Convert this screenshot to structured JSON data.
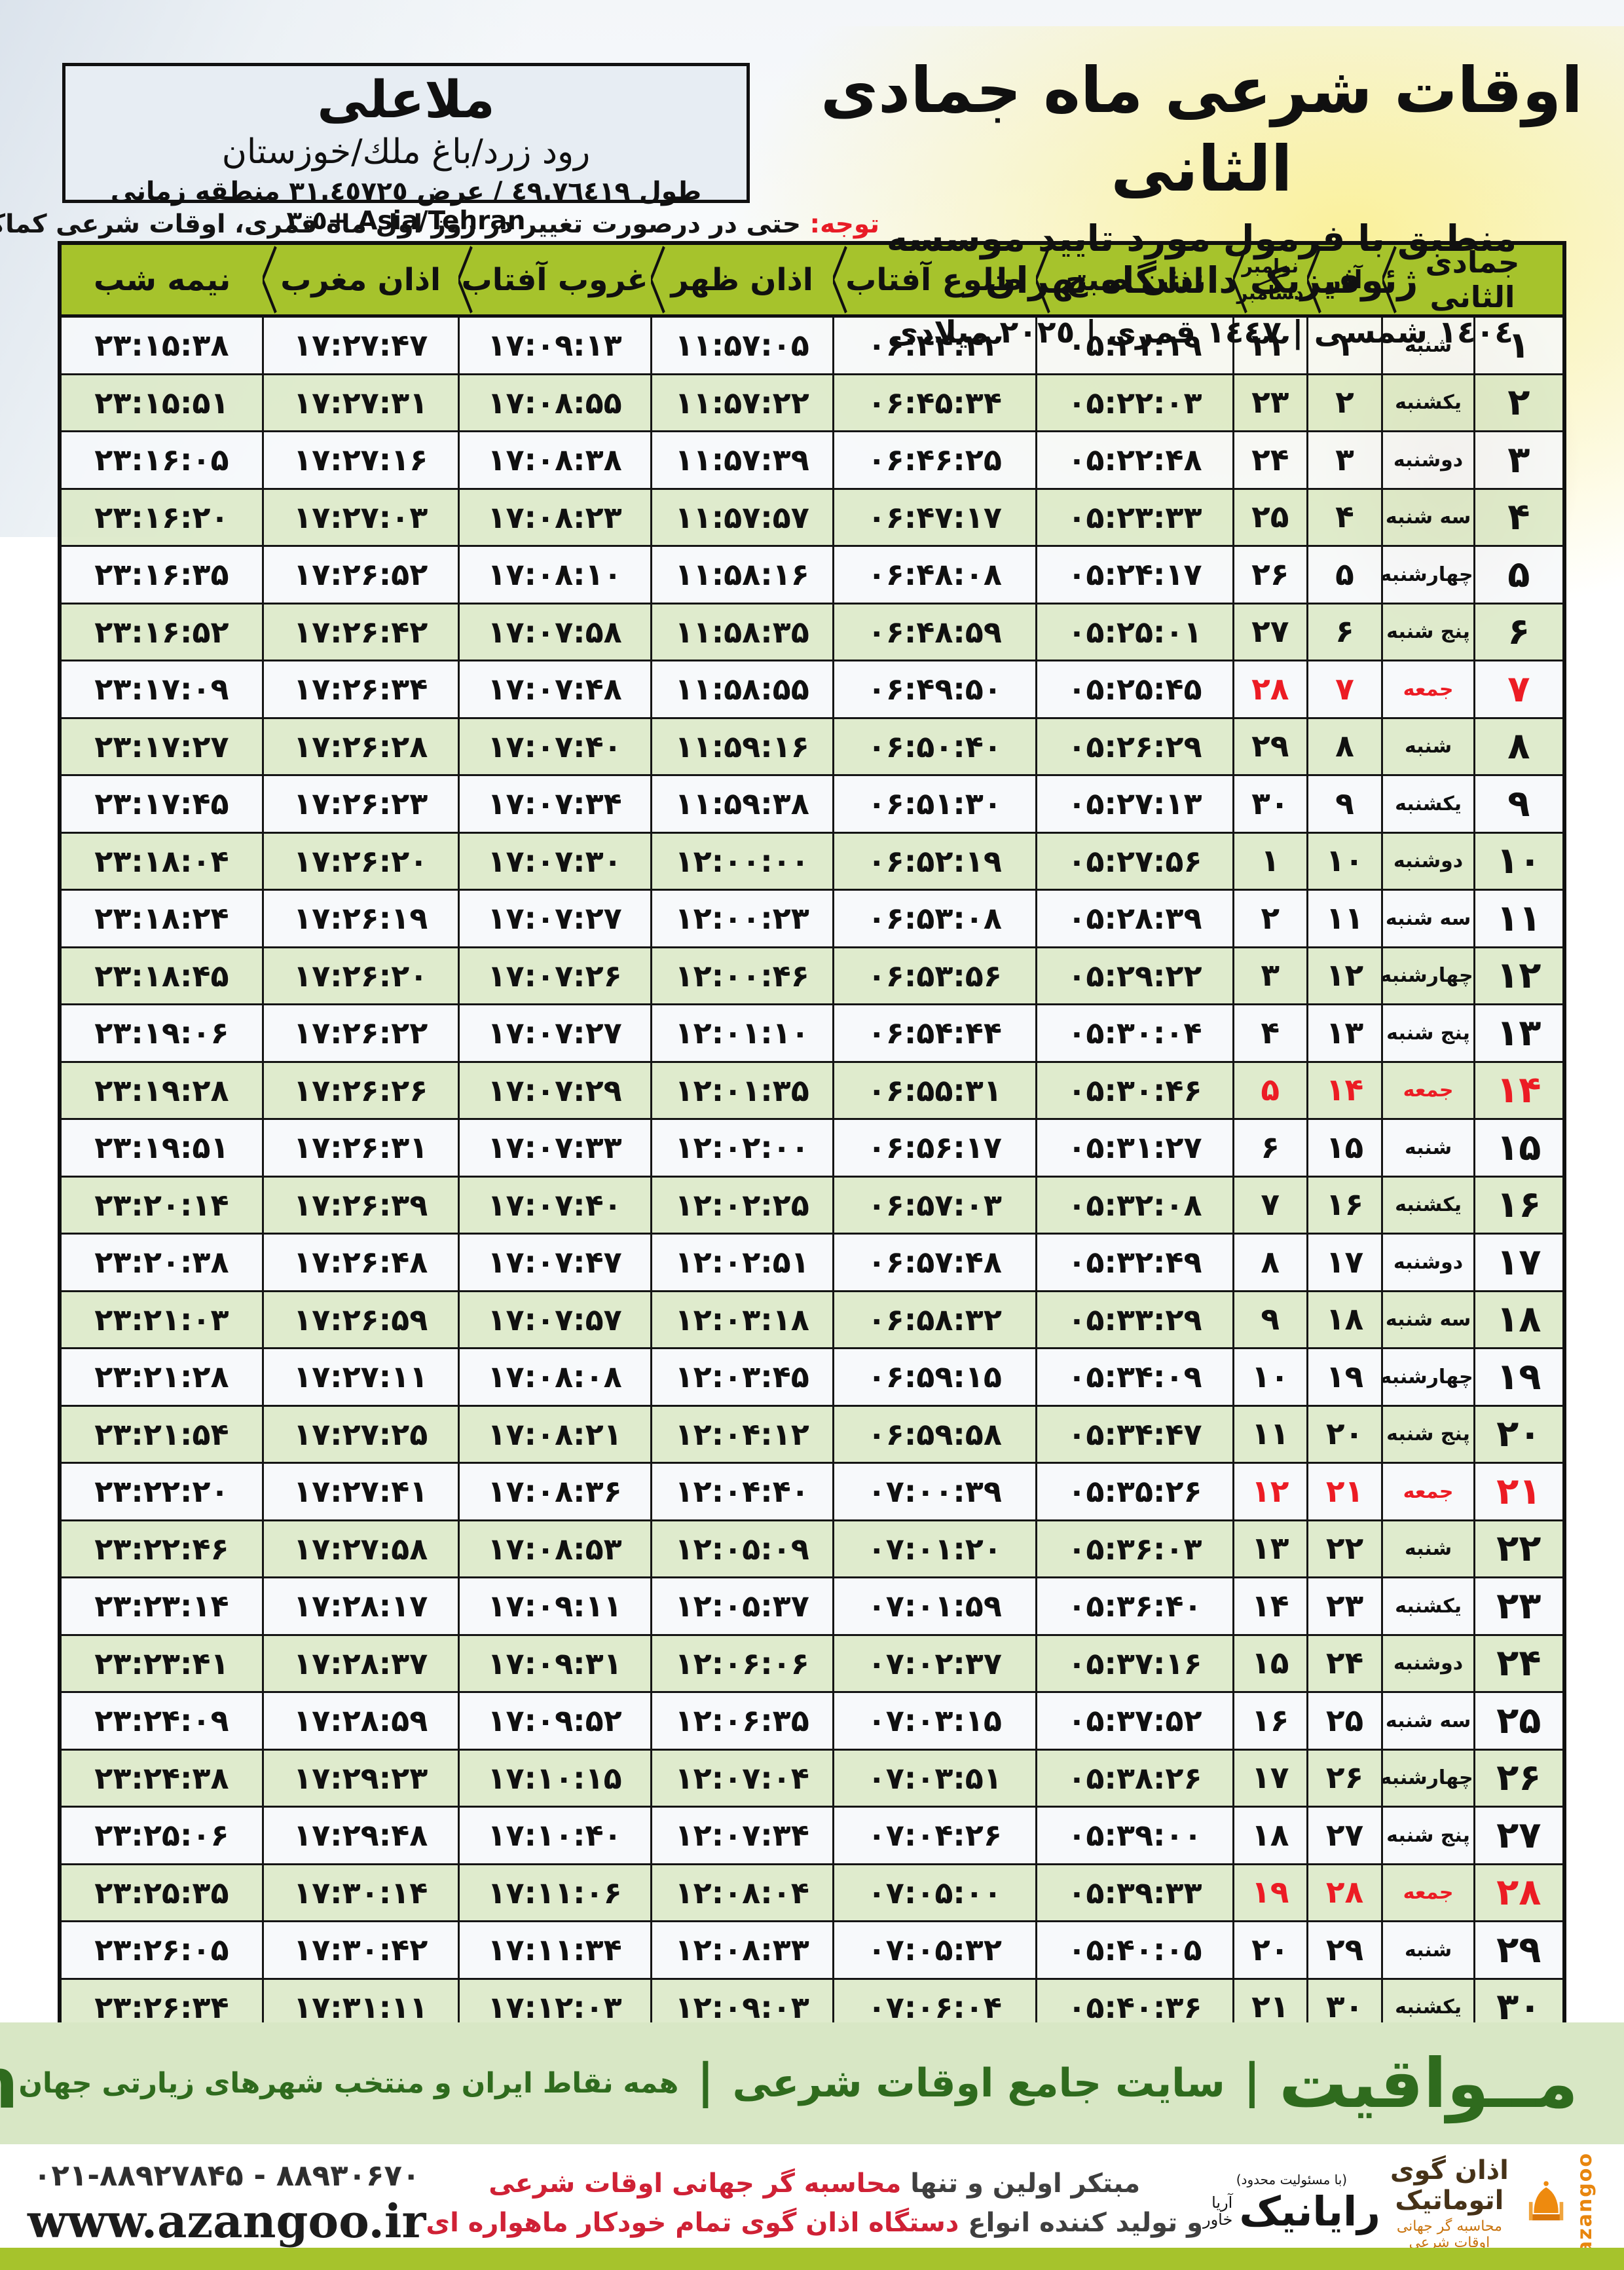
{
  "colors": {
    "header_green": "#a6c32c",
    "row_green": "#dbe8c6",
    "row_white": "#f5f8fa",
    "friday_red": "#ec1c24",
    "note_red": "#e81c26",
    "brand_green": "#2f6b1e",
    "band_green": "#d8e7c5",
    "tagline_red": "#cf2135",
    "azangoo_orange": "#e8860e"
  },
  "header": {
    "title": "اوقات شرعی ماه جمادی الثانی",
    "subtitle": "منطبق با فرمول مورد تایید موسسه ژئوفیزیک دانشگاه تهران",
    "year_line": "١٤٠٤ شمسی | ١٤٤٧ قمری | ٢٠٢٥ میلادی"
  },
  "location": {
    "name": "ملاعلی",
    "region": "رود زرد/باغ ملك/خوزستان",
    "coordinates": "طول ٤٩.٧٦٤١٩ / عرض ٣١.٤٥٧٢٥ منطقه زمانی Asia/Tehran +٣.٥"
  },
  "note": {
    "label": "توجه:",
    "text": " حتی در درصورت تغییر در روز اول ماه قمری، اوقات شرعی کماکان برای روزهای شمسی و میلادی معتبر است."
  },
  "table": {
    "headers": {
      "month": "جمادی الثانی",
      "azar": "آذر",
      "greg_top": "نوامبر",
      "greg_bottom": "دسامبر",
      "sobh": "اذان صبح",
      "tolu": "طلوع آفتاب",
      "zohr": "اذان ظهر",
      "ghorub": "غروب آفتاب",
      "maghreb": "اذان مغرب",
      "nimeshab": "نیمه شب"
    },
    "rows": [
      {
        "day": "۱",
        "weekday": "شنبه",
        "azar": "۱",
        "greg": "۲۲",
        "sobh": "۰۵:۲۱:۱۹",
        "tolu": "۰۶:۴۴:۴۲",
        "zohr": "۱۱:۵۷:۰۵",
        "ghorub": "۱۷:۰۹:۱۳",
        "maghreb": "۱۷:۲۷:۴۷",
        "nimeshab": "۲۳:۱۵:۳۸"
      },
      {
        "day": "۲",
        "weekday": "یکشنبه",
        "azar": "۲",
        "greg": "۲۳",
        "sobh": "۰۵:۲۲:۰۳",
        "tolu": "۰۶:۴۵:۳۴",
        "zohr": "۱۱:۵۷:۲۲",
        "ghorub": "۱۷:۰۸:۵۵",
        "maghreb": "۱۷:۲۷:۳۱",
        "nimeshab": "۲۳:۱۵:۵۱"
      },
      {
        "day": "۳",
        "weekday": "دوشنبه",
        "azar": "۳",
        "greg": "۲۴",
        "sobh": "۰۵:۲۲:۴۸",
        "tolu": "۰۶:۴۶:۲۵",
        "zohr": "۱۱:۵۷:۳۹",
        "ghorub": "۱۷:۰۸:۳۸",
        "maghreb": "۱۷:۲۷:۱۶",
        "nimeshab": "۲۳:۱۶:۰۵"
      },
      {
        "day": "۴",
        "weekday": "سه شنبه",
        "azar": "۴",
        "greg": "۲۵",
        "sobh": "۰۵:۲۳:۳۳",
        "tolu": "۰۶:۴۷:۱۷",
        "zohr": "۱۱:۵۷:۵۷",
        "ghorub": "۱۷:۰۸:۲۳",
        "maghreb": "۱۷:۲۷:۰۳",
        "nimeshab": "۲۳:۱۶:۲۰"
      },
      {
        "day": "۵",
        "weekday": "چهارشنبه",
        "azar": "۵",
        "greg": "۲۶",
        "sobh": "۰۵:۲۴:۱۷",
        "tolu": "۰۶:۴۸:۰۸",
        "zohr": "۱۱:۵۸:۱۶",
        "ghorub": "۱۷:۰۸:۱۰",
        "maghreb": "۱۷:۲۶:۵۲",
        "nimeshab": "۲۳:۱۶:۳۵"
      },
      {
        "day": "۶",
        "weekday": "پنج شنبه",
        "azar": "۶",
        "greg": "۲۷",
        "sobh": "۰۵:۲۵:۰۱",
        "tolu": "۰۶:۴۸:۵۹",
        "zohr": "۱۱:۵۸:۳۵",
        "ghorub": "۱۷:۰۷:۵۸",
        "maghreb": "۱۷:۲۶:۴۲",
        "nimeshab": "۲۳:۱۶:۵۲"
      },
      {
        "day": "۷",
        "weekday": "جمعه",
        "azar": "۷",
        "greg": "۲۸",
        "sobh": "۰۵:۲۵:۴۵",
        "tolu": "۰۶:۴۹:۵۰",
        "zohr": "۱۱:۵۸:۵۵",
        "ghorub": "۱۷:۰۷:۴۸",
        "maghreb": "۱۷:۲۶:۳۴",
        "nimeshab": "۲۳:۱۷:۰۹"
      },
      {
        "day": "۸",
        "weekday": "شنبه",
        "azar": "۸",
        "greg": "۲۹",
        "sobh": "۰۵:۲۶:۲۹",
        "tolu": "۰۶:۵۰:۴۰",
        "zohr": "۱۱:۵۹:۱۶",
        "ghorub": "۱۷:۰۷:۴۰",
        "maghreb": "۱۷:۲۶:۲۸",
        "nimeshab": "۲۳:۱۷:۲۷"
      },
      {
        "day": "۹",
        "weekday": "یکشنبه",
        "azar": "۹",
        "greg": "۳۰",
        "sobh": "۰۵:۲۷:۱۳",
        "tolu": "۰۶:۵۱:۳۰",
        "zohr": "۱۱:۵۹:۳۸",
        "ghorub": "۱۷:۰۷:۳۴",
        "maghreb": "۱۷:۲۶:۲۳",
        "nimeshab": "۲۳:۱۷:۴۵"
      },
      {
        "day": "۱۰",
        "weekday": "دوشنبه",
        "azar": "۱۰",
        "greg": "۱",
        "sobh": "۰۵:۲۷:۵۶",
        "tolu": "۰۶:۵۲:۱۹",
        "zohr": "۱۲:۰۰:۰۰",
        "ghorub": "۱۷:۰۷:۳۰",
        "maghreb": "۱۷:۲۶:۲۰",
        "nimeshab": "۲۳:۱۸:۰۴"
      },
      {
        "day": "۱۱",
        "weekday": "سه شنبه",
        "azar": "۱۱",
        "greg": "۲",
        "sobh": "۰۵:۲۸:۳۹",
        "tolu": "۰۶:۵۳:۰۸",
        "zohr": "۱۲:۰۰:۲۳",
        "ghorub": "۱۷:۰۷:۲۷",
        "maghreb": "۱۷:۲۶:۱۹",
        "nimeshab": "۲۳:۱۸:۲۴"
      },
      {
        "day": "۱۲",
        "weekday": "چهارشنبه",
        "azar": "۱۲",
        "greg": "۳",
        "sobh": "۰۵:۲۹:۲۲",
        "tolu": "۰۶:۵۳:۵۶",
        "zohr": "۱۲:۰۰:۴۶",
        "ghorub": "۱۷:۰۷:۲۶",
        "maghreb": "۱۷:۲۶:۲۰",
        "nimeshab": "۲۳:۱۸:۴۵"
      },
      {
        "day": "۱۳",
        "weekday": "پنج شنبه",
        "azar": "۱۳",
        "greg": "۴",
        "sobh": "۰۵:۳۰:۰۴",
        "tolu": "۰۶:۵۴:۴۴",
        "zohr": "۱۲:۰۱:۱۰",
        "ghorub": "۱۷:۰۷:۲۷",
        "maghreb": "۱۷:۲۶:۲۲",
        "nimeshab": "۲۳:۱۹:۰۶"
      },
      {
        "day": "۱۴",
        "weekday": "جمعه",
        "azar": "۱۴",
        "greg": "۵",
        "sobh": "۰۵:۳۰:۴۶",
        "tolu": "۰۶:۵۵:۳۱",
        "zohr": "۱۲:۰۱:۳۵",
        "ghorub": "۱۷:۰۷:۲۹",
        "maghreb": "۱۷:۲۶:۲۶",
        "nimeshab": "۲۳:۱۹:۲۸"
      },
      {
        "day": "۱۵",
        "weekday": "شنبه",
        "azar": "۱۵",
        "greg": "۶",
        "sobh": "۰۵:۳۱:۲۷",
        "tolu": "۰۶:۵۶:۱۷",
        "zohr": "۱۲:۰۲:۰۰",
        "ghorub": "۱۷:۰۷:۳۳",
        "maghreb": "۱۷:۲۶:۳۱",
        "nimeshab": "۲۳:۱۹:۵۱"
      },
      {
        "day": "۱۶",
        "weekday": "یکشنبه",
        "azar": "۱۶",
        "greg": "۷",
        "sobh": "۰۵:۳۲:۰۸",
        "tolu": "۰۶:۵۷:۰۳",
        "zohr": "۱۲:۰۲:۲۵",
        "ghorub": "۱۷:۰۷:۴۰",
        "maghreb": "۱۷:۲۶:۳۹",
        "nimeshab": "۲۳:۲۰:۱۴"
      },
      {
        "day": "۱۷",
        "weekday": "دوشنبه",
        "azar": "۱۷",
        "greg": "۸",
        "sobh": "۰۵:۳۲:۴۹",
        "tolu": "۰۶:۵۷:۴۸",
        "zohr": "۱۲:۰۲:۵۱",
        "ghorub": "۱۷:۰۷:۴۷",
        "maghreb": "۱۷:۲۶:۴۸",
        "nimeshab": "۲۳:۲۰:۳۸"
      },
      {
        "day": "۱۸",
        "weekday": "سه شنبه",
        "azar": "۱۸",
        "greg": "۹",
        "sobh": "۰۵:۳۳:۲۹",
        "tolu": "۰۶:۵۸:۳۲",
        "zohr": "۱۲:۰۳:۱۸",
        "ghorub": "۱۷:۰۷:۵۷",
        "maghreb": "۱۷:۲۶:۵۹",
        "nimeshab": "۲۳:۲۱:۰۳"
      },
      {
        "day": "۱۹",
        "weekday": "چهارشنبه",
        "azar": "۱۹",
        "greg": "۱۰",
        "sobh": "۰۵:۳۴:۰۹",
        "tolu": "۰۶:۵۹:۱۵",
        "zohr": "۱۲:۰۳:۴۵",
        "ghorub": "۱۷:۰۸:۰۸",
        "maghreb": "۱۷:۲۷:۱۱",
        "nimeshab": "۲۳:۲۱:۲۸"
      },
      {
        "day": "۲۰",
        "weekday": "پنج شنبه",
        "azar": "۲۰",
        "greg": "۱۱",
        "sobh": "۰۵:۳۴:۴۷",
        "tolu": "۰۶:۵۹:۵۸",
        "zohr": "۱۲:۰۴:۱۲",
        "ghorub": "۱۷:۰۸:۲۱",
        "maghreb": "۱۷:۲۷:۲۵",
        "nimeshab": "۲۳:۲۱:۵۴"
      },
      {
        "day": "۲۱",
        "weekday": "جمعه",
        "azar": "۲۱",
        "greg": "۱۲",
        "sobh": "۰۵:۳۵:۲۶",
        "tolu": "۰۷:۰۰:۳۹",
        "zohr": "۱۲:۰۴:۴۰",
        "ghorub": "۱۷:۰۸:۳۶",
        "maghreb": "۱۷:۲۷:۴۱",
        "nimeshab": "۲۳:۲۲:۲۰"
      },
      {
        "day": "۲۲",
        "weekday": "شنبه",
        "azar": "۲۲",
        "greg": "۱۳",
        "sobh": "۰۵:۳۶:۰۳",
        "tolu": "۰۷:۰۱:۲۰",
        "zohr": "۱۲:۰۵:۰۹",
        "ghorub": "۱۷:۰۸:۵۳",
        "maghreb": "۱۷:۲۷:۵۸",
        "nimeshab": "۲۳:۲۲:۴۶"
      },
      {
        "day": "۲۳",
        "weekday": "یکشنبه",
        "azar": "۲۳",
        "greg": "۱۴",
        "sobh": "۰۵:۳۶:۴۰",
        "tolu": "۰۷:۰۱:۵۹",
        "zohr": "۱۲:۰۵:۳۷",
        "ghorub": "۱۷:۰۹:۱۱",
        "maghreb": "۱۷:۲۸:۱۷",
        "nimeshab": "۲۳:۲۳:۱۴"
      },
      {
        "day": "۲۴",
        "weekday": "دوشنبه",
        "azar": "۲۴",
        "greg": "۱۵",
        "sobh": "۰۵:۳۷:۱۶",
        "tolu": "۰۷:۰۲:۳۷",
        "zohr": "۱۲:۰۶:۰۶",
        "ghorub": "۱۷:۰۹:۳۱",
        "maghreb": "۱۷:۲۸:۳۷",
        "nimeshab": "۲۳:۲۳:۴۱"
      },
      {
        "day": "۲۵",
        "weekday": "سه شنبه",
        "azar": "۲۵",
        "greg": "۱۶",
        "sobh": "۰۵:۳۷:۵۲",
        "tolu": "۰۷:۰۳:۱۵",
        "zohr": "۱۲:۰۶:۳۵",
        "ghorub": "۱۷:۰۹:۵۲",
        "maghreb": "۱۷:۲۸:۵۹",
        "nimeshab": "۲۳:۲۴:۰۹"
      },
      {
        "day": "۲۶",
        "weekday": "چهارشنبه",
        "azar": "۲۶",
        "greg": "۱۷",
        "sobh": "۰۵:۳۸:۲۶",
        "tolu": "۰۷:۰۳:۵۱",
        "zohr": "۱۲:۰۷:۰۴",
        "ghorub": "۱۷:۱۰:۱۵",
        "maghreb": "۱۷:۲۹:۲۳",
        "nimeshab": "۲۳:۲۴:۳۸"
      },
      {
        "day": "۲۷",
        "weekday": "پنج شنبه",
        "azar": "۲۷",
        "greg": "۱۸",
        "sobh": "۰۵:۳۹:۰۰",
        "tolu": "۰۷:۰۴:۲۶",
        "zohr": "۱۲:۰۷:۳۴",
        "ghorub": "۱۷:۱۰:۴۰",
        "maghreb": "۱۷:۲۹:۴۸",
        "nimeshab": "۲۳:۲۵:۰۶"
      },
      {
        "day": "۲۸",
        "weekday": "جمعه",
        "azar": "۲۸",
        "greg": "۱۹",
        "sobh": "۰۵:۳۹:۳۳",
        "tolu": "۰۷:۰۵:۰۰",
        "zohr": "۱۲:۰۸:۰۴",
        "ghorub": "۱۷:۱۱:۰۶",
        "maghreb": "۱۷:۳۰:۱۴",
        "nimeshab": "۲۳:۲۵:۳۵"
      },
      {
        "day": "۲۹",
        "weekday": "شنبه",
        "azar": "۲۹",
        "greg": "۲۰",
        "sobh": "۰۵:۴۰:۰۵",
        "tolu": "۰۷:۰۵:۳۲",
        "zohr": "۱۲:۰۸:۳۳",
        "ghorub": "۱۷:۱۱:۳۴",
        "maghreb": "۱۷:۳۰:۴۲",
        "nimeshab": "۲۳:۲۶:۰۵"
      },
      {
        "day": "۳۰",
        "weekday": "یکشنبه",
        "azar": "۳۰",
        "greg": "۲۱",
        "sobh": "۰۵:۴۰:۳۶",
        "tolu": "۰۷:۰۶:۰۴",
        "zohr": "۱۲:۰۹:۰۳",
        "ghorub": "۱۷:۱۲:۰۳",
        "maghreb": "۱۷:۳۱:۱۱",
        "nimeshab": "۲۳:۲۶:۳۴"
      }
    ]
  },
  "band": {
    "brand": "مــواقیت",
    "separator": "|",
    "site_desc": "سایت جامع اوقات شرعی",
    "coverage": "همه نقاط ایران و منتخب شهرهای زیارتی جهان",
    "domain": "mavaqeet.com"
  },
  "footer": {
    "contact": {
      "phones": "۰۲۱-۸۸۹۲۷۸۴۵ - ۸۸۹۳۰۶۷۰",
      "website": "www.azangoo.ir"
    },
    "tagline": {
      "line1_dark": "مبتکر اولین و تنها ",
      "line1_red": "محاسبه گر جهانی اوقات شرعی",
      "line2_dark": "و تولید کننده انواع ",
      "line2_red": "دستگاه اذان گوی تمام خودکار ماهواره ای"
    },
    "rayanik": {
      "small_top": "(با مسئولیت محدود)",
      "name": "رایانیک",
      "sub1": "آریا",
      "sub2": "خاور"
    },
    "azangoo": {
      "title": "اذان گوی اتوماتیک",
      "subtitle": "محاسبه گر جهانی اوقات شرعی",
      "latin": "azangoo"
    }
  }
}
